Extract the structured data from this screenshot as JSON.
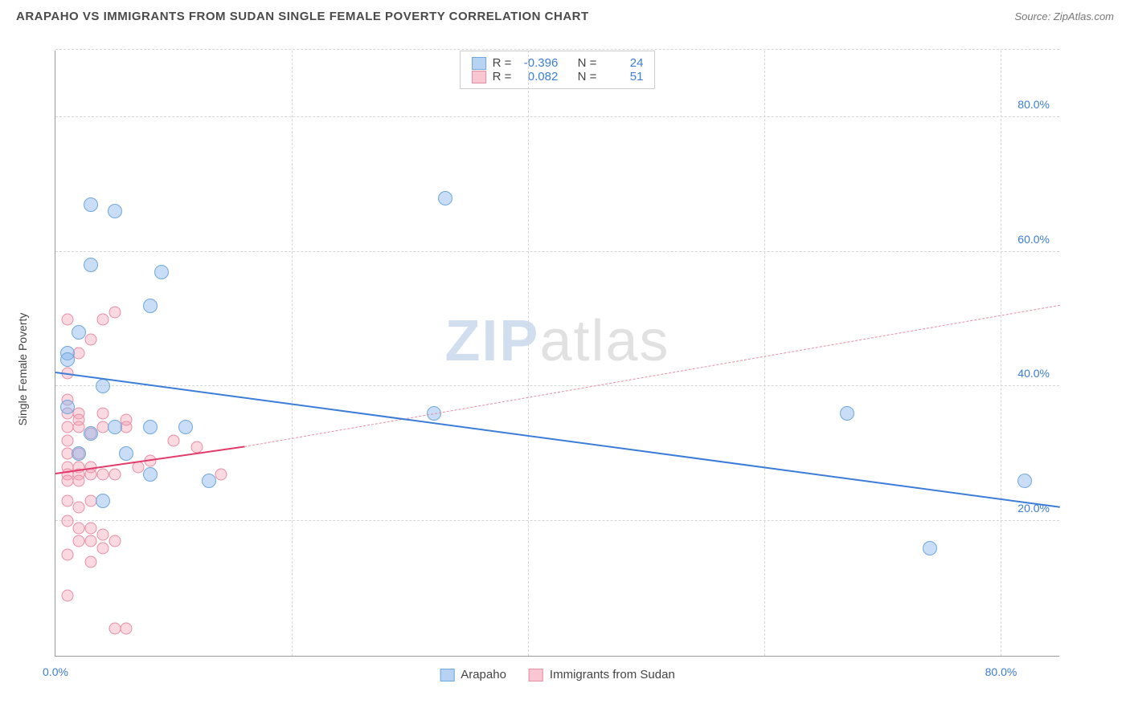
{
  "title": "ARAPAHO VS IMMIGRANTS FROM SUDAN SINGLE FEMALE POVERTY CORRELATION CHART",
  "source": "Source: ZipAtlas.com",
  "watermark": {
    "part1": "ZIP",
    "part2": "atlas"
  },
  "chart": {
    "type": "scatter",
    "ylabel": "Single Female Poverty",
    "background_color": "#ffffff",
    "grid_color": "#d5d5d5",
    "axis_color": "#999999",
    "tick_color": "#3b7dd8",
    "label_color": "#444444",
    "xlim": [
      0,
      85
    ],
    "ylim": [
      0,
      90
    ],
    "xticks": [
      {
        "val": 0,
        "label": "0.0%"
      },
      {
        "val": 80,
        "label": "80.0%"
      }
    ],
    "xgrid": [
      20,
      40,
      60,
      80
    ],
    "yticks": [
      {
        "val": 20,
        "label": "20.0%"
      },
      {
        "val": 40,
        "label": "40.0%"
      },
      {
        "val": 60,
        "label": "60.0%"
      },
      {
        "val": 80,
        "label": "80.0%"
      }
    ],
    "ygrid": [
      20,
      40,
      60,
      80,
      90
    ],
    "series": [
      {
        "name": "Arapaho",
        "color_fill": "rgba(135,180,235,0.45)",
        "color_stroke": "#6fa8dc",
        "marker_size": 18,
        "stats": {
          "R": "-0.396",
          "N": "24"
        },
        "trend": {
          "x1": 0,
          "y1": 42,
          "x2": 85,
          "y2": 22,
          "style": "solid",
          "color": "#3b7dd8",
          "width": 2.5
        },
        "points": [
          [
            1,
            45
          ],
          [
            3,
            67
          ],
          [
            5,
            66
          ],
          [
            3,
            58
          ],
          [
            9,
            57
          ],
          [
            8,
            52
          ],
          [
            2,
            48
          ],
          [
            1,
            37
          ],
          [
            1,
            44
          ],
          [
            4,
            40
          ],
          [
            5,
            34
          ],
          [
            8,
            34
          ],
          [
            11,
            34
          ],
          [
            13,
            26
          ],
          [
            8,
            27
          ],
          [
            6,
            30
          ],
          [
            3,
            33
          ],
          [
            32,
            36
          ],
          [
            33,
            68
          ],
          [
            67,
            36
          ],
          [
            74,
            16
          ],
          [
            82,
            26
          ],
          [
            2,
            30
          ],
          [
            4,
            23
          ]
        ]
      },
      {
        "name": "Immigrants from Sudan",
        "color_fill": "rgba(245,160,180,0.40)",
        "color_stroke": "#e88ca3",
        "marker_size": 15,
        "stats": {
          "R": "0.082",
          "N": "51"
        },
        "trend_solid": {
          "x1": 0,
          "y1": 27,
          "x2": 16,
          "y2": 31,
          "style": "solid",
          "color": "#e23b6b",
          "width": 2
        },
        "trend_dash": {
          "x1": 16,
          "y1": 31,
          "x2": 85,
          "y2": 52,
          "style": "dashed",
          "color": "#e88ca3",
          "width": 1
        },
        "points": [
          [
            1,
            50
          ],
          [
            4,
            50
          ],
          [
            5,
            51
          ],
          [
            3,
            47
          ],
          [
            2,
            45
          ],
          [
            1,
            42
          ],
          [
            1,
            38
          ],
          [
            1,
            36
          ],
          [
            2,
            36
          ],
          [
            1,
            34
          ],
          [
            2,
            34
          ],
          [
            3,
            33
          ],
          [
            4,
            34
          ],
          [
            6,
            34
          ],
          [
            1,
            32
          ],
          [
            1,
            30
          ],
          [
            2,
            30
          ],
          [
            1,
            28
          ],
          [
            2,
            28
          ],
          [
            3,
            28
          ],
          [
            1,
            27
          ],
          [
            2,
            27
          ],
          [
            3,
            27
          ],
          [
            1,
            26
          ],
          [
            2,
            26
          ],
          [
            4,
            27
          ],
          [
            5,
            27
          ],
          [
            7,
            28
          ],
          [
            8,
            29
          ],
          [
            10,
            32
          ],
          [
            12,
            31
          ],
          [
            14,
            27
          ],
          [
            1,
            23
          ],
          [
            2,
            22
          ],
          [
            3,
            23
          ],
          [
            1,
            20
          ],
          [
            2,
            19
          ],
          [
            3,
            19
          ],
          [
            4,
            18
          ],
          [
            3,
            17
          ],
          [
            2,
            17
          ],
          [
            4,
            16
          ],
          [
            5,
            17
          ],
          [
            1,
            15
          ],
          [
            3,
            14
          ],
          [
            1,
            9
          ],
          [
            5,
            4
          ],
          [
            6,
            4
          ],
          [
            2,
            35
          ],
          [
            4,
            36
          ],
          [
            6,
            35
          ]
        ]
      }
    ],
    "statbox": {
      "r_label": "R =",
      "n_label": "N ="
    },
    "legend_labels": [
      "Arapaho",
      "Immigrants from Sudan"
    ]
  }
}
